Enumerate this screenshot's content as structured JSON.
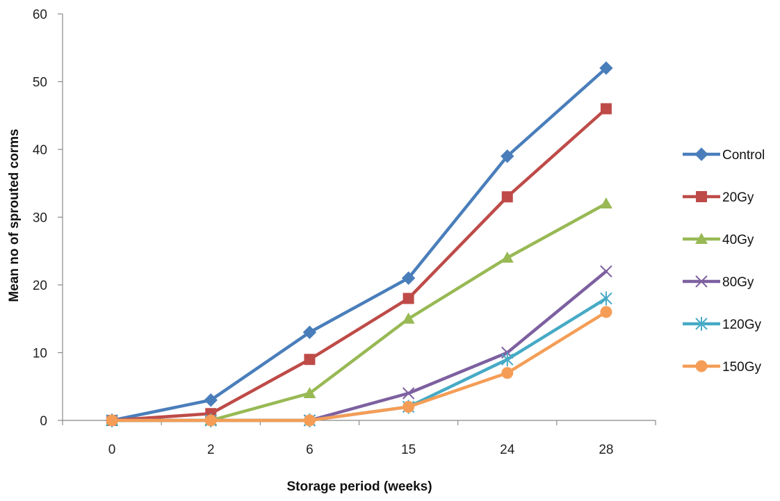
{
  "chart_data": {
    "type": "line",
    "title": "",
    "xlabel": "Storage period (weeks)",
    "ylabel": "Mean no of sprouted corms",
    "categories": [
      "0",
      "2",
      "6",
      "15",
      "24",
      "28"
    ],
    "ylim": [
      0,
      60
    ],
    "yticks": [
      0,
      10,
      20,
      30,
      40,
      50,
      60
    ],
    "grid": false,
    "legend_position": "right",
    "series": [
      {
        "name": "Control",
        "color": "#4a7ebb",
        "marker": "diamond",
        "values": [
          0,
          3,
          13,
          21,
          39,
          52
        ]
      },
      {
        "name": "20Gy",
        "color": "#be4b48",
        "marker": "square",
        "values": [
          0,
          1,
          9,
          18,
          33,
          46
        ]
      },
      {
        "name": "40Gy",
        "color": "#98b954",
        "marker": "triangle",
        "values": [
          0,
          0,
          4,
          15,
          24,
          32
        ]
      },
      {
        "name": "80Gy",
        "color": "#7d60a0",
        "marker": "x",
        "values": [
          0,
          0,
          0,
          4,
          10,
          22
        ]
      },
      {
        "name": "120Gy",
        "color": "#46aac5",
        "marker": "asterisk",
        "values": [
          0,
          0,
          0,
          2,
          9,
          18
        ]
      },
      {
        "name": "150Gy",
        "color": "#f59d56",
        "marker": "circle",
        "values": [
          0,
          0,
          0,
          2,
          7,
          16
        ]
      }
    ]
  }
}
